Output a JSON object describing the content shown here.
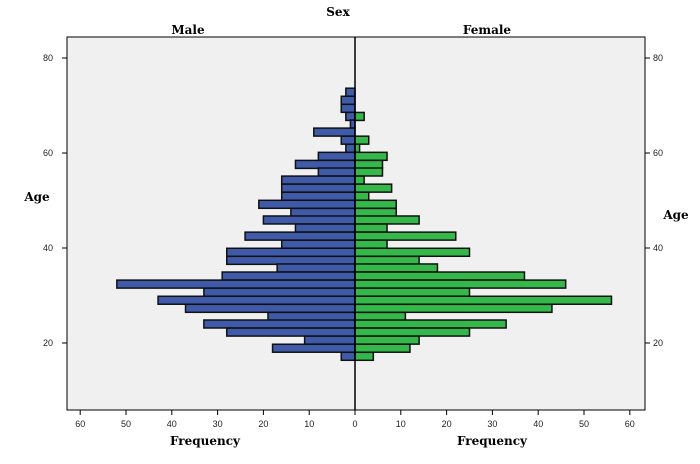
{
  "chart_data": {
    "type": "bar",
    "subtype": "population-pyramid",
    "title": "Sex",
    "panel_labels": {
      "left": "Male",
      "right": "Female"
    },
    "ylabel": "Age",
    "xlabel": "Frequency",
    "ylim": [
      5,
      84
    ],
    "xlim": [
      0,
      62
    ],
    "y_ticks": [
      80,
      60,
      40,
      20
    ],
    "x_ticks": [
      60,
      50,
      40,
      30,
      20,
      10,
      0
    ],
    "bin_width": 1.68,
    "age_bins": [
      72.8,
      71.1,
      69.4,
      67.7,
      66.1,
      64.4,
      62.7,
      61.0,
      59.3,
      57.6,
      56.0,
      54.3,
      52.6,
      50.9,
      49.2,
      47.5,
      45.9,
      44.2,
      42.5,
      40.8,
      39.1,
      37.4,
      35.8,
      34.1,
      32.4,
      30.7,
      29.0,
      27.3,
      25.6,
      24.0,
      22.3,
      20.6,
      18.9,
      17.2
    ],
    "series": [
      {
        "name": "Male",
        "color": "#3f5aa8",
        "values": [
          2,
          3,
          3,
          2,
          1,
          9,
          3,
          2,
          8,
          13,
          8,
          16,
          16,
          16,
          21,
          14,
          20,
          13,
          24,
          16,
          28,
          28,
          17,
          29,
          52,
          33,
          43,
          37,
          19,
          33,
          28,
          11,
          18,
          3
        ]
      },
      {
        "name": "Female",
        "color": "#35b84a",
        "values": [
          0,
          0,
          0,
          2,
          0,
          0,
          3,
          1,
          7,
          6,
          6,
          2,
          8,
          3,
          9,
          9,
          14,
          7,
          22,
          7,
          25,
          14,
          18,
          37,
          46,
          25,
          56,
          43,
          11,
          33,
          25,
          14,
          12,
          4
        ]
      }
    ],
    "background": "#f0f0f0",
    "grid": false,
    "legend": "none"
  }
}
